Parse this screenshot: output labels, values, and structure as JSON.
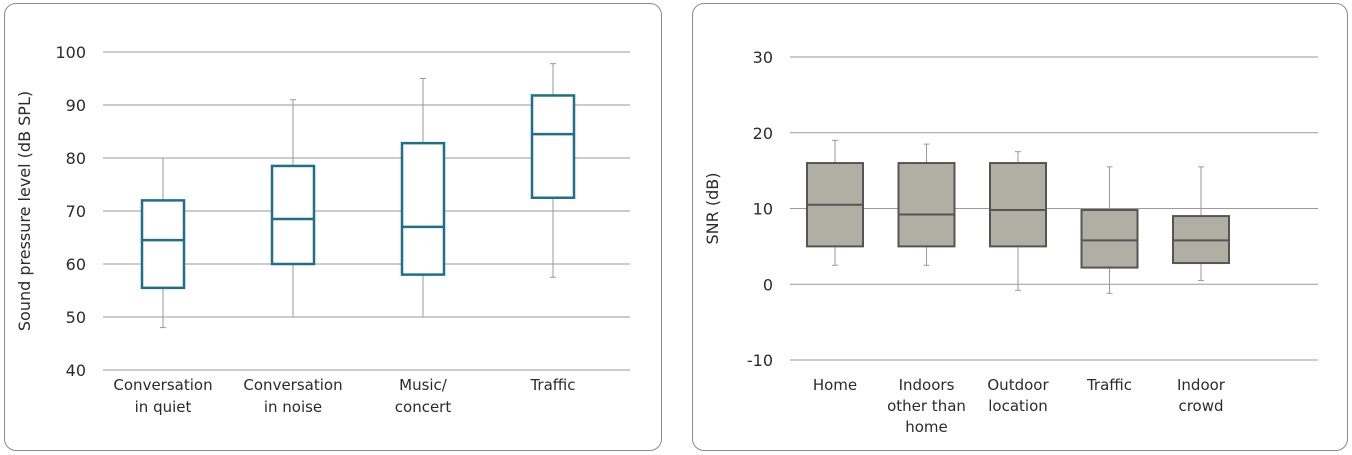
{
  "chart_data": [
    {
      "type": "boxplot",
      "title": "",
      "xlabel": "",
      "ylabel": "Sound pressure level (dB SPL)",
      "ylim": [
        40,
        100
      ],
      "yticks": [
        40,
        50,
        60,
        70,
        80,
        90,
        100
      ],
      "grid": true,
      "box_color": "#1f6f8b",
      "box_fill": "#ffffff",
      "whisker_color": "#9a9a9a",
      "categories": [
        [
          "Conversation",
          "in quiet"
        ],
        [
          "Conversation",
          "in noise"
        ],
        [
          "Music/",
          "concert"
        ],
        [
          "Traffic"
        ]
      ],
      "boxes": [
        {
          "min": 48,
          "q1": 55.5,
          "median": 64.5,
          "q3": 72,
          "max": 80
        },
        {
          "min": 50,
          "q1": 60,
          "median": 68.5,
          "q3": 78.5,
          "max": 91
        },
        {
          "min": 50,
          "q1": 58,
          "median": 67,
          "q3": 82.8,
          "max": 95
        },
        {
          "min": 57.5,
          "q1": 72.5,
          "median": 84.5,
          "q3": 91.8,
          "max": 97.8
        }
      ]
    },
    {
      "type": "boxplot",
      "title": "",
      "xlabel": "",
      "ylabel": "SNR (dB)",
      "ylim": [
        -10,
        30
      ],
      "yticks": [
        -10,
        0,
        10,
        20,
        30
      ],
      "grid": true,
      "box_color": "#555555",
      "box_fill": "#b0afa4",
      "whisker_color": "#9a9a9a",
      "categories": [
        [
          "Home"
        ],
        [
          "Indoors",
          "other than",
          "home"
        ],
        [
          "Outdoor",
          "location"
        ],
        [
          "Traffic"
        ],
        [
          "Indoor",
          "crowd"
        ]
      ],
      "boxes": [
        {
          "min": 2.5,
          "q1": 5,
          "median": 10.5,
          "q3": 16,
          "max": 19
        },
        {
          "min": 2.5,
          "q1": 5,
          "median": 9.2,
          "q3": 16,
          "max": 18.5
        },
        {
          "min": -0.8,
          "q1": 5,
          "median": 9.8,
          "q3": 16,
          "max": 17.5
        },
        {
          "min": -1.2,
          "q1": 2.2,
          "median": 5.8,
          "q3": 9.8,
          "max": 15.5
        },
        {
          "min": 0.5,
          "q1": 2.8,
          "median": 5.8,
          "q3": 9,
          "max": 15.5
        }
      ]
    }
  ]
}
